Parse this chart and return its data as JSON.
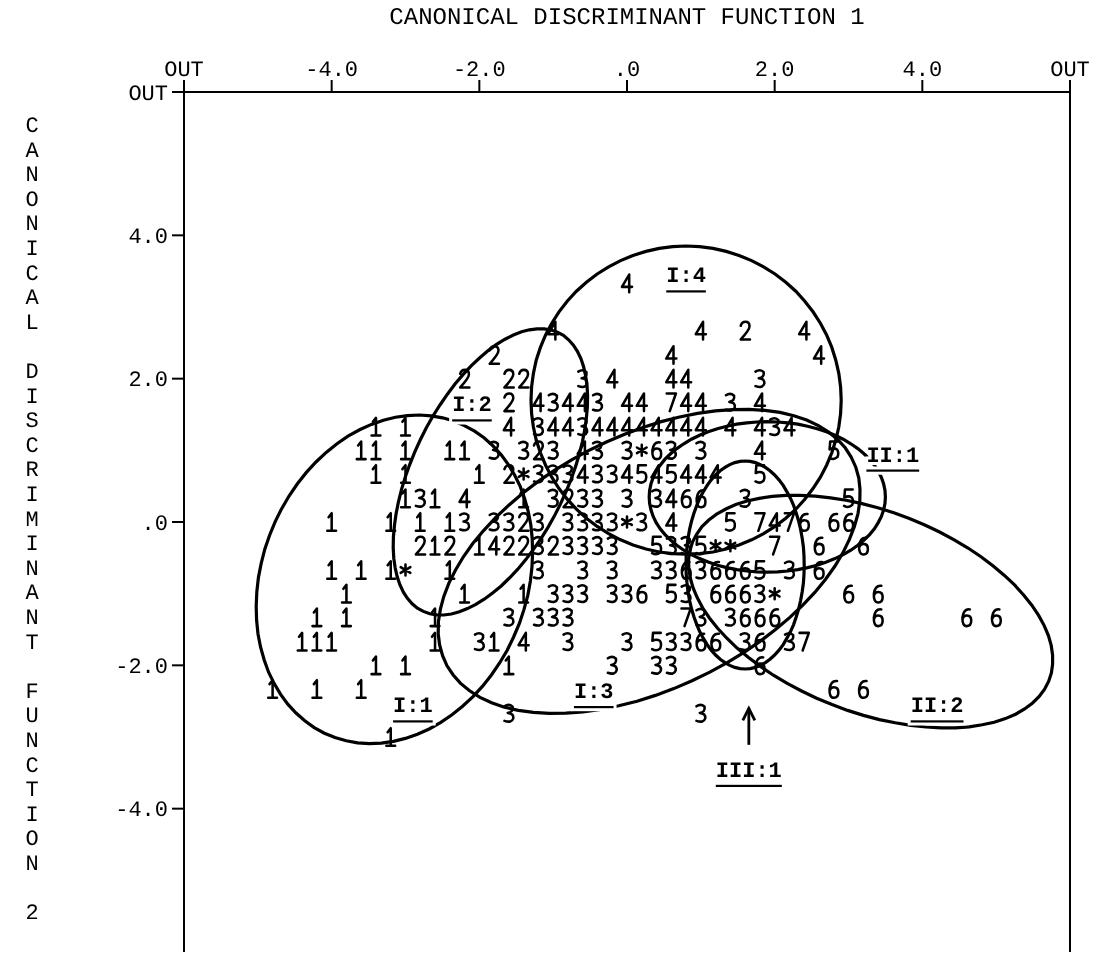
{
  "chart_data": {
    "type": "scatter",
    "xlabel": "CANONICAL DISCRIMINANT FUNCTION 1",
    "ylabel": "CANONICAL DISCRIMINANT FUNCTION 2",
    "xlim": [
      -6,
      6
    ],
    "ylim": [
      -6,
      6
    ],
    "xticks": [
      {
        "value": -6,
        "label": "OUT"
      },
      {
        "value": -4,
        "label": "-4.0"
      },
      {
        "value": -2,
        "label": "-2.0"
      },
      {
        "value": 0,
        "label": ".0"
      },
      {
        "value": 2,
        "label": "2.0"
      },
      {
        "value": 4,
        "label": "4.0"
      },
      {
        "value": 6,
        "label": "OUT"
      }
    ],
    "yticks": [
      {
        "value": 6,
        "label": "OUT"
      },
      {
        "value": 4,
        "label": "4.0"
      },
      {
        "value": 2,
        "label": "2.0"
      },
      {
        "value": 0,
        "label": ".0"
      },
      {
        "value": -2,
        "label": "-2.0"
      },
      {
        "value": -4,
        "label": "-4.0"
      }
    ],
    "series": [
      {
        "color": "#000000",
        "x": [
          -3.4,
          -3.0,
          -3.6,
          -3.4,
          -3.0,
          -2.4,
          -2.2,
          -3.4,
          -3.0,
          -2.0,
          -3.0,
          -2.6,
          -1.4,
          -4.0,
          -3.2,
          -2.8,
          -2.4,
          -2.6,
          -2.0,
          -4.0,
          -3.6,
          -3.2,
          -2.4,
          -3.8,
          -2.2,
          -1.4,
          -4.2,
          -3.8,
          -2.6,
          -4.4,
          -4.2,
          -4.0,
          -2.6,
          -1.8,
          -3.4,
          -3.0,
          -1.6,
          -4.8,
          -4.2,
          -3.6,
          -3.2
        ],
        "values": [
          1.33,
          1.33,
          1,
          1,
          1,
          1,
          1,
          0.67,
          0.67,
          0.67,
          0.33,
          0.33,
          0.33,
          0,
          0,
          0,
          0,
          -0.33,
          -0.33,
          -0.67,
          -0.67,
          -0.67,
          -0.67,
          -1,
          -1,
          -1,
          -1.33,
          -1.33,
          -1.33,
          -1.67,
          -1.67,
          -1.67,
          -1.67,
          -1.67,
          -2,
          -2,
          -2,
          -2.33,
          -2.33,
          -2.33,
          -3
        ]
      },
      {
        "color": "#000000",
        "x": [
          1.6,
          -1.8,
          -2.2,
          -1.6,
          -1.4,
          -1.6,
          -1.2,
          -1.6,
          -0.8,
          -1.4,
          -2.8,
          -2.4,
          -1.6,
          -1.4,
          -1.0
        ],
        "values": [
          2.67,
          2.33,
          2,
          2,
          2,
          1.67,
          1,
          0.67,
          0.33,
          0,
          -0.33,
          -0.33,
          -0.33,
          -0.33,
          -0.33
        ]
      },
      {
        "color": "#000000",
        "x": [
          -0.6,
          1.8,
          -1.0,
          -0.4,
          1.4,
          -1.2,
          -0.6,
          2.0,
          -1.8,
          -1.4,
          -1.0,
          -0.4,
          0,
          0.6,
          1.0,
          -1.2,
          -1.0,
          -0.8,
          -0.4,
          -0.2,
          -2.8,
          -1.0,
          -0.6,
          -0.4,
          0,
          0.4,
          1.6,
          -2.2,
          -1.8,
          -1.6,
          -1.2,
          -0.8,
          -0.6,
          -0.4,
          -0.2,
          0.2,
          -1.2,
          -0.8,
          -0.6,
          -0.4,
          -0.2,
          0.6,
          0.8,
          -1.2,
          -0.6,
          -0.2,
          0.4,
          0.6,
          1.0,
          2.2,
          -1.0,
          -0.8,
          -0.6,
          -0.2,
          0,
          0.8,
          1.8,
          -1.6,
          -1.2,
          -1.0,
          -0.8,
          1.0,
          1.4,
          -2.0,
          -0.8,
          0,
          0.6,
          0.8,
          1.6,
          2.2,
          -0.2,
          0.4,
          0.6,
          -1.6,
          1.0
        ],
        "values": [
          2,
          2,
          1.67,
          1.67,
          1.67,
          1.33,
          1.33,
          1.33,
          1,
          1,
          1,
          1,
          1,
          1,
          1,
          0.67,
          0.67,
          0.67,
          0.67,
          0.67,
          0.33,
          0.33,
          0.33,
          0.33,
          0.33,
          0.33,
          0.33,
          0,
          0,
          0,
          0,
          0,
          0,
          0,
          0,
          0,
          -0.33,
          -0.33,
          -0.33,
          -0.33,
          -0.33,
          -0.33,
          -0.33,
          -0.67,
          -0.67,
          -0.67,
          -0.67,
          -0.67,
          -0.67,
          -0.67,
          -1,
          -1,
          -1,
          -1,
          -1,
          -1,
          -1,
          -1.33,
          -1.33,
          -1.33,
          -1.33,
          -1.33,
          -1.33,
          -1.67,
          -1.67,
          -1.67,
          -1.67,
          -1.67,
          -1.67,
          -1.67,
          -2,
          -2,
          -2,
          -2.67,
          -2.67
        ]
      },
      {
        "color": "#000000",
        "x": [
          0,
          -1.0,
          1.0,
          2.4,
          0.6,
          2.6,
          -0.2,
          0.6,
          0.8,
          -1.2,
          -0.8,
          -0.6,
          0,
          0.2,
          0.8,
          1.0,
          1.8,
          -1.6,
          -1.0,
          -0.8,
          -0.4,
          -0.2,
          0,
          0.2,
          0.4,
          0.6,
          0.8,
          1.0,
          1.4,
          1.8,
          2.2,
          -0.6,
          1.8,
          -0.6,
          0,
          0.4,
          0.8,
          1.0,
          1.2,
          -2.2,
          0.6,
          0.6,
          2.0,
          -1.8,
          -1.4
        ],
        "values": [
          3.33,
          2.67,
          2.67,
          2.67,
          2.33,
          2.33,
          2,
          2,
          2,
          1.67,
          1.67,
          1.67,
          1.67,
          1.67,
          1.67,
          1.67,
          1.67,
          1.33,
          1.33,
          1.33,
          1.33,
          1.33,
          1.33,
          1.33,
          1.33,
          1.33,
          1.33,
          1.33,
          1.33,
          1.33,
          1.33,
          1,
          1,
          0.67,
          0.67,
          0.67,
          0.67,
          0.67,
          0.67,
          0.33,
          0.33,
          0,
          0,
          -0.33,
          -1.67
        ]
      },
      {
        "color": "#000000",
        "x": [
          2.8,
          0.2,
          0.6,
          1.8,
          3.0,
          1.4,
          0.4,
          1.0,
          1.8,
          0.6,
          0.4
        ],
        "values": [
          1,
          0.67,
          0.67,
          0.67,
          0.33,
          0,
          -0.33,
          -0.33,
          -0.67,
          -1,
          -1.67
        ]
      },
      {
        "color": "#000000",
        "x": [
          0.4,
          0.8,
          1.0,
          2.4,
          2.8,
          3.0,
          2.6,
          3.2,
          0.8,
          1.2,
          1.4,
          1.6,
          2.6,
          0.2,
          1.2,
          1.4,
          1.6,
          3.0,
          3.4,
          1.6,
          1.8,
          2.0,
          3.4,
          4.6,
          5.0,
          1.0,
          1.2,
          1.8,
          1.8,
          2.8,
          3.2
        ],
        "values": [
          1,
          0.33,
          0.33,
          0,
          0,
          0,
          -0.33,
          -0.33,
          -0.67,
          -0.67,
          -0.67,
          -0.67,
          -0.67,
          -1,
          -1,
          -1,
          -1,
          -1,
          -1,
          -1.33,
          -1.33,
          -1.33,
          -1.33,
          -1.33,
          -1.33,
          -1.67,
          -1.67,
          -1.67,
          -2,
          -2.33,
          -2.33
        ]
      },
      {
        "color": "#000000",
        "x": [
          0.6,
          1.8,
          2.2,
          2.0,
          0.8,
          2.4
        ],
        "values": [
          1.67,
          0,
          0,
          -0.33,
          -1.33,
          -1.67
        ]
      },
      {
        "color": "#000000",
        "x": [
          0.2,
          -1.4,
          0,
          1.2,
          1.4,
          -3.0,
          2.0
        ],
        "values": [
          1,
          0.67,
          0,
          -0.33,
          -0.33,
          -0.67,
          -1
        ]
      }
    ],
    "annotations": [
      "I:1",
      "I:2",
      "I:3",
      "I:4",
      "II:1",
      "II:2",
      "III:1"
    ]
  }
}
